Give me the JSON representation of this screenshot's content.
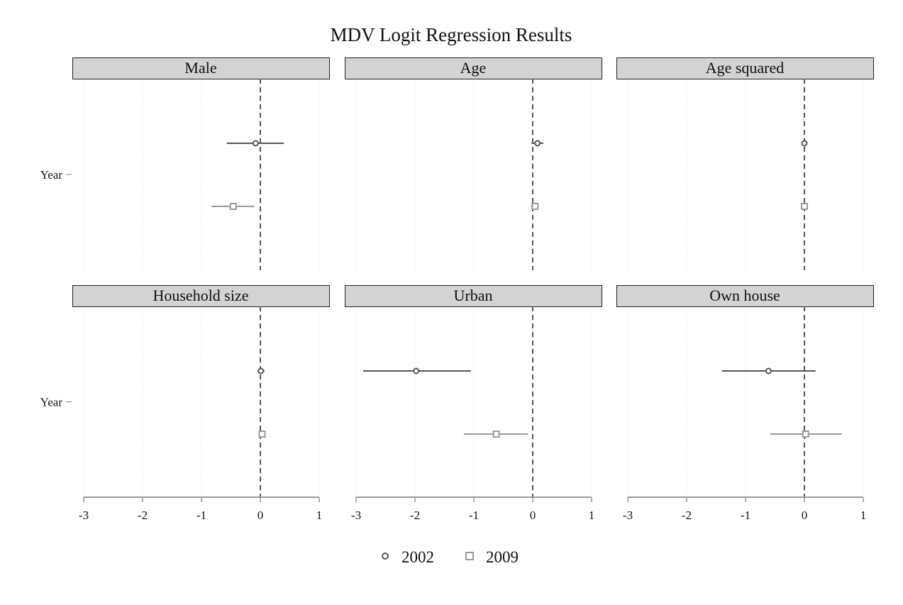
{
  "chart_data": {
    "type": "scatter",
    "title": "MDV Logit Regression Results",
    "xlim": [
      -3,
      1
    ],
    "xticks": [
      -3,
      -2,
      -1,
      0,
      1
    ],
    "ylabel_tick": "Year",
    "reference_line_x": 0,
    "grid": true,
    "legend_position": "bottom",
    "series": [
      {
        "name": "2002",
        "marker": "circle",
        "color": "#555555"
      },
      {
        "name": "2009",
        "marker": "square",
        "color": "#999999"
      }
    ],
    "panels": [
      {
        "label": "Male",
        "points": [
          {
            "series": "2002",
            "estimate": -0.08,
            "ci": [
              -0.57,
              0.4
            ]
          },
          {
            "series": "2009",
            "estimate": -0.46,
            "ci": [
              -0.83,
              -0.1
            ]
          }
        ]
      },
      {
        "label": "Age",
        "points": [
          {
            "series": "2002",
            "estimate": 0.08,
            "ci": [
              -0.02,
              0.18
            ]
          },
          {
            "series": "2009",
            "estimate": 0.04,
            "ci": [
              -0.03,
              0.1
            ]
          }
        ]
      },
      {
        "label": "Age squared",
        "points": [
          {
            "series": "2002",
            "estimate": 0.0,
            "ci": [
              -0.01,
              0.01
            ]
          },
          {
            "series": "2009",
            "estimate": 0.0,
            "ci": [
              -0.01,
              0.01
            ]
          }
        ]
      },
      {
        "label": "Household size",
        "points": [
          {
            "series": "2002",
            "estimate": 0.01,
            "ci": [
              -0.05,
              0.07
            ]
          },
          {
            "series": "2009",
            "estimate": 0.03,
            "ci": [
              -0.02,
              0.08
            ]
          }
        ]
      },
      {
        "label": "Urban",
        "points": [
          {
            "series": "2002",
            "estimate": -1.98,
            "ci": [
              -2.88,
              -1.05
            ]
          },
          {
            "series": "2009",
            "estimate": -0.62,
            "ci": [
              -1.17,
              -0.08
            ]
          }
        ]
      },
      {
        "label": "Own house",
        "points": [
          {
            "series": "2002",
            "estimate": -0.61,
            "ci": [
              -1.4,
              0.19
            ]
          },
          {
            "series": "2009",
            "estimate": 0.02,
            "ci": [
              -0.58,
              0.63
            ]
          }
        ]
      }
    ]
  }
}
